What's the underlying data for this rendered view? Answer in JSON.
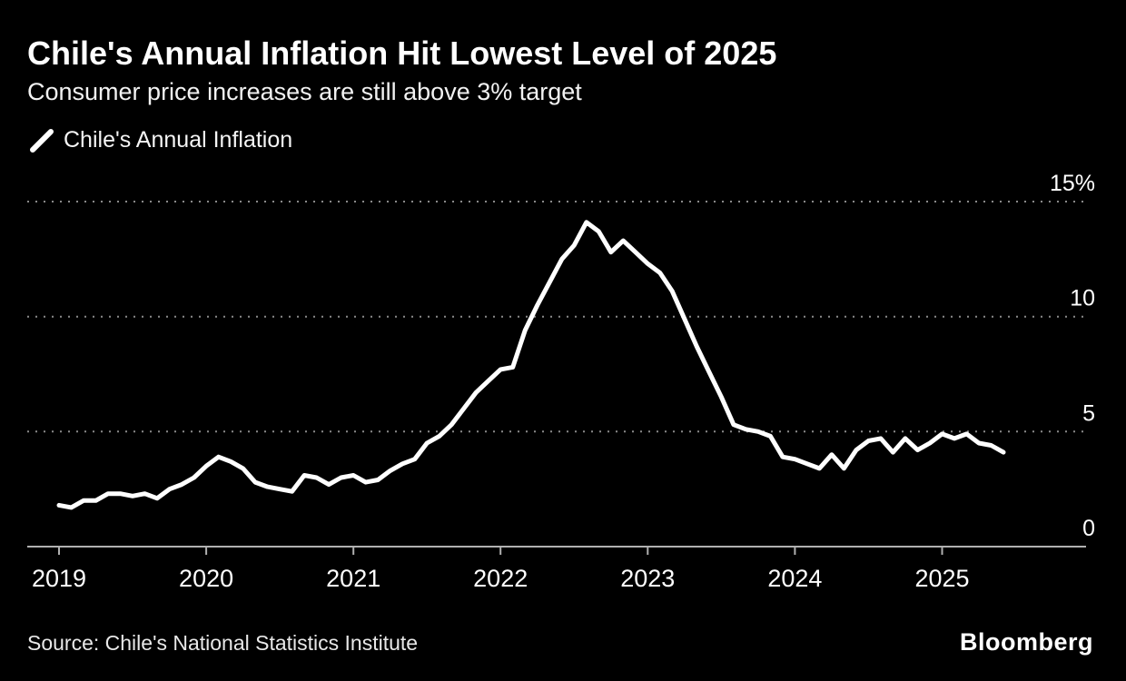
{
  "header": {
    "title": "Chile's Annual Inflation Hit Lowest Level of 2025",
    "subtitle": "Consumer price increases are still above 3% target"
  },
  "legend": {
    "label": "Chile's Annual Inflation"
  },
  "footer": {
    "source": "Source: Chile's National Statistics Institute",
    "brand": "Bloomberg"
  },
  "chart_data": {
    "type": "line",
    "title": "Chile's Annual Inflation",
    "unit": "%",
    "x_start": "2019-01",
    "x_end": "2025-06",
    "x_tick_labels": [
      "2019",
      "2020",
      "2021",
      "2022",
      "2023",
      "2024",
      "2025"
    ],
    "y_ticks": [
      {
        "value": 0,
        "label": "0"
      },
      {
        "value": 5,
        "label": "5"
      },
      {
        "value": 10,
        "label": "10"
      },
      {
        "value": 15,
        "label": "15%"
      }
    ],
    "ylim": [
      0,
      15
    ],
    "grid": "dotted-horizontal",
    "legend_position": "top-left",
    "line_color": "#ffffff",
    "background_color": "#000000",
    "values": [
      1.8,
      1.7,
      2.0,
      2.0,
      2.3,
      2.3,
      2.2,
      2.3,
      2.1,
      2.5,
      2.7,
      3.0,
      3.5,
      3.9,
      3.7,
      3.4,
      2.8,
      2.6,
      2.5,
      2.4,
      3.1,
      3.0,
      2.7,
      3.0,
      3.1,
      2.8,
      2.9,
      3.3,
      3.6,
      3.8,
      4.5,
      4.8,
      5.3,
      6.0,
      6.7,
      7.2,
      7.7,
      7.8,
      9.4,
      10.5,
      11.5,
      12.5,
      13.1,
      14.1,
      13.7,
      12.8,
      13.3,
      12.8,
      12.3,
      11.9,
      11.1,
      9.9,
      8.7,
      7.6,
      6.5,
      5.3,
      5.1,
      5.0,
      4.8,
      3.9,
      3.8,
      3.6,
      3.4,
      4.0,
      3.4,
      4.2,
      4.6,
      4.7,
      4.1,
      4.7,
      4.2,
      4.5,
      4.9,
      4.7,
      4.9,
      4.5,
      4.4,
      4.1
    ]
  }
}
